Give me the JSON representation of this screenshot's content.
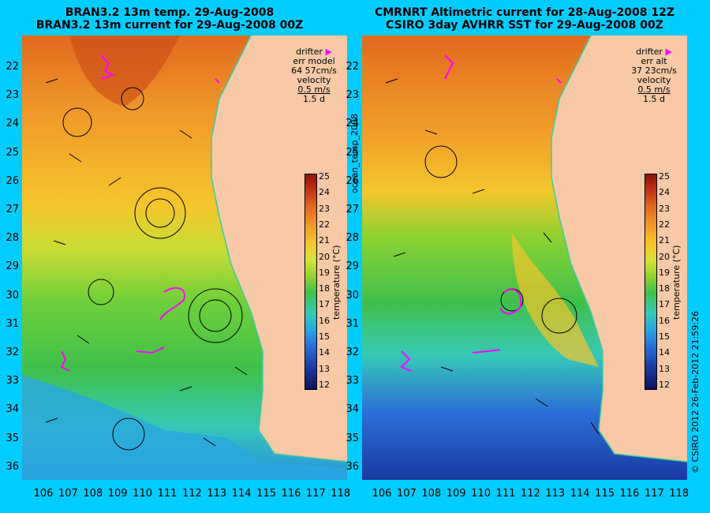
{
  "left_panel": {
    "title_line1": "BRAN3.2 13m temp. 29-Aug-2008",
    "title_line2": "BRAN3.2 13m current for 29-Aug-2008 00Z",
    "legend": {
      "drifter": "drifter",
      "err": "err model",
      "err_values": "64 57cm/s",
      "velocity": "velocity",
      "scale": "0.5 m/s",
      "duration": "1.5 d"
    }
  },
  "right_panel": {
    "title_line1": "CMRNRT Altimetric current for 28-Aug-2008 12Z",
    "title_line2": "CSIRO 3day AVHRR SST for 29-Aug-2008 00Z",
    "legend": {
      "drifter": "drifter",
      "err": "err alt",
      "err_values": "37 23cm/s",
      "velocity": "velocity",
      "scale": "0.5 m/s",
      "duration": "1.5 d"
    }
  },
  "latitude_labels": [
    "22",
    "23",
    "24",
    "25",
    "26",
    "27",
    "28",
    "29",
    "30",
    "31",
    "32",
    "33",
    "34",
    "35",
    "36"
  ],
  "longitude_labels": [
    "106",
    "107",
    "108",
    "109",
    "110",
    "111",
    "112",
    "113",
    "114",
    "115",
    "116",
    "117",
    "118"
  ],
  "colorbar": {
    "ticks": [
      "25",
      "24",
      "23",
      "22",
      "21",
      "20",
      "19",
      "18",
      "17",
      "16",
      "15",
      "14",
      "13",
      "12"
    ],
    "unit_label": "temperature (°C)"
  },
  "side_label": "ocean_temp_2008",
  "credit": "© CSIRO 2012   26-Feb-2012 21:59:26",
  "colors": {
    "background": "#00ccff",
    "land": "#f7c9a6",
    "drifter": "#ff00ff",
    "warm": "#f19a2a",
    "cool": "#2a6fd6"
  }
}
